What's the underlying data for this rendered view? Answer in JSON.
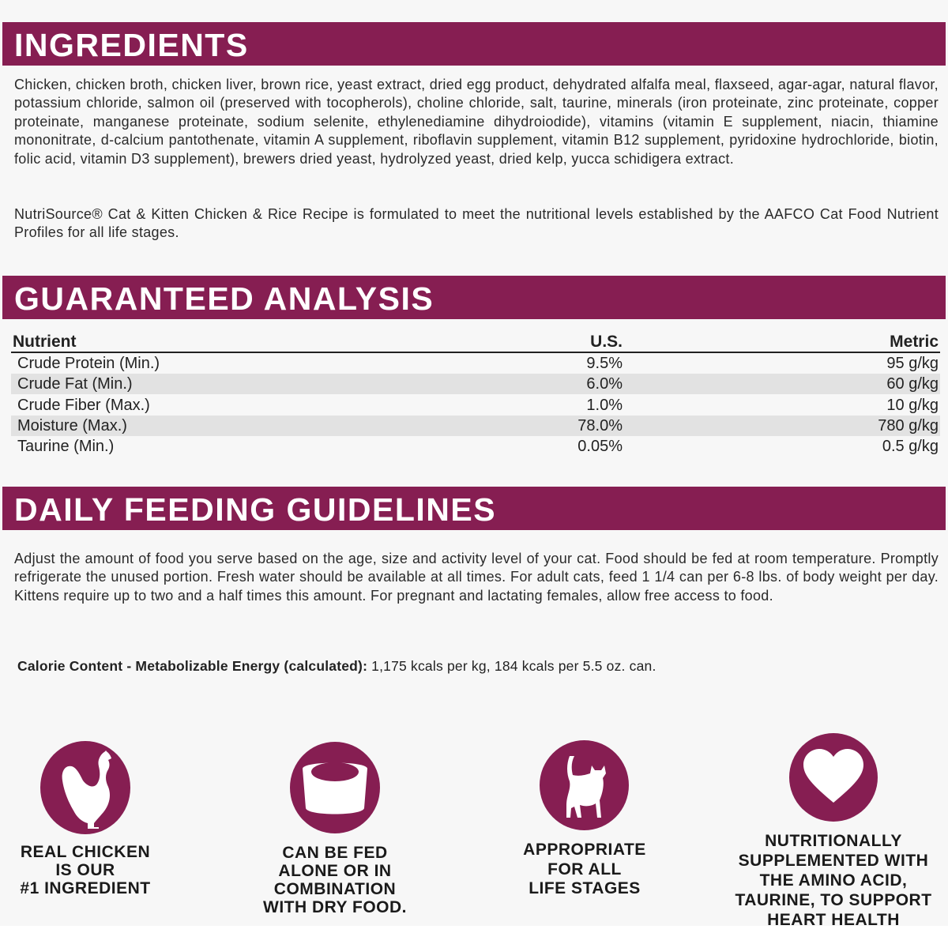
{
  "brand_color": "#861e52",
  "ingredients": {
    "title": "INGREDIENTS",
    "text": "Chicken, chicken broth, chicken liver, brown rice, yeast extract, dried egg product, dehydrated alfalfa meal, flaxseed, agar-agar, natural flavor, potassium chloride, salmon oil (preserved with tocopherols), choline chloride, salt, taurine, minerals (iron proteinate, zinc proteinate, copper proteinate, manganese proteinate, sodium selenite, ethylenediamine dihydroiodide), vitamins (vitamin E supplement, niacin, thiamine mononitrate, d-calcium pantothenate, vitamin A supplement, riboflavin supplement, vitamin B12 supplement, pyridoxine hydrochloride, biotin, folic acid, vitamin D3 supplement), brewers dried yeast, hydrolyzed yeast, dried kelp, yucca schidigera extract.",
    "statement": "NutriSource® Cat & Kitten Chicken & Rice Recipe is formulated to meet the nutritional levels established by the AAFCO Cat Food Nutrient Profiles for all life stages."
  },
  "analysis": {
    "title": "GUARANTEED ANALYSIS",
    "headers": [
      "Nutrient",
      "U.S.",
      "Metric"
    ],
    "rows": [
      [
        "Crude Protein (Min.)",
        "9.5%",
        "95 g/kg"
      ],
      [
        "Crude Fat (Min.)",
        "6.0%",
        "60 g/kg"
      ],
      [
        "Crude Fiber (Max.)",
        "1.0%",
        "10 g/kg"
      ],
      [
        "Moisture (Max.)",
        "78.0%",
        "780 g/kg"
      ],
      [
        "Taurine (Min.)",
        "0.05%",
        "0.5 g/kg"
      ]
    ]
  },
  "feeding": {
    "title": "DAILY FEEDING GUIDELINES",
    "text": "Adjust the amount of food you serve based on the age, size and activity level of your cat. Food should be fed at room temperature. Promptly refrigerate the unused portion. Fresh water should be available at all times. For adult cats, feed 1 1/4 can per 6-8 lbs. of body weight per day. Kittens require up to two and a half times this amount. For pregnant and lactating females, allow free access to food.",
    "calorie_label": "Calorie Content - Metabolizable Energy (calculated):",
    "calorie_value": " 1,175 kcals per kg, 184 kcals per 5.5 oz. can."
  },
  "features": [
    {
      "icon": "chicken-icon",
      "lines": [
        "REAL CHICKEN",
        "IS OUR",
        "#1 INGREDIENT"
      ]
    },
    {
      "icon": "bowl-icon",
      "lines": [
        "CAN BE FED",
        "ALONE OR IN",
        "COMBINATION",
        "WITH DRY FOOD."
      ]
    },
    {
      "icon": "cat-icon",
      "lines": [
        "APPROPRIATE",
        "FOR ALL",
        "LIFE STAGES"
      ]
    },
    {
      "icon": "heart-icon",
      "lines": [
        "NUTRITIONALLY",
        "SUPPLEMENTED WITH",
        "THE AMINO ACID,",
        "TAURINE, TO SUPPORT",
        "HEART HEALTH"
      ]
    }
  ]
}
